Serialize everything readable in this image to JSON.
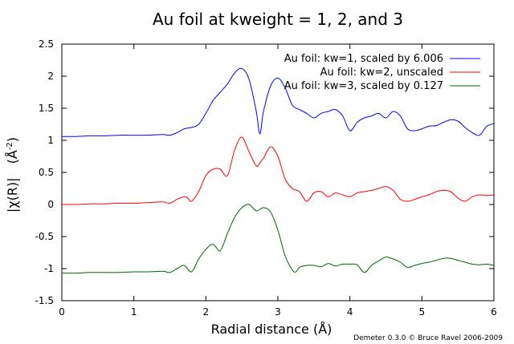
{
  "chart_data": {
    "type": "line",
    "title": "Au foil at kweight = 1, 2, and 3",
    "xlabel": "Radial distance    (Å)",
    "ylabel": "|χ(R)|",
    "ylabel_unit": "(Å",
    "ylabel_unit_sup": "-2",
    "ylabel_unit_close": ")",
    "credit": "Demeter 0.3.0 © Bruce Ravel 2006-2009",
    "xlim": [
      0,
      6
    ],
    "ylim": [
      -1.5,
      2.5
    ],
    "xticks": [
      0,
      1,
      2,
      3,
      4,
      5,
      6
    ],
    "yticks": [
      2.5,
      2,
      1.5,
      1,
      0.5,
      0,
      -0.5,
      -1,
      -1.5
    ],
    "ytick_labels": [
      "2.5",
      "2",
      "1.5",
      "1",
      "0.5",
      "0",
      "-0.5",
      "-1",
      "-1.5"
    ],
    "xtick_labels": [
      "0",
      "1",
      "2",
      "3",
      "4",
      "5",
      "6"
    ],
    "legend_position": "top-right",
    "grid": false,
    "series": [
      {
        "name": "Au foil: kw=1, scaled by 6.006",
        "color": "#0000ff",
        "x": [
          0,
          0.2,
          0.4,
          0.6,
          0.8,
          1.0,
          1.2,
          1.4,
          1.5,
          1.6,
          1.7,
          1.8,
          1.9,
          2.0,
          2.1,
          2.2,
          2.3,
          2.4,
          2.5,
          2.6,
          2.7,
          2.75,
          2.8,
          2.9,
          3.0,
          3.1,
          3.2,
          3.3,
          3.4,
          3.5,
          3.6,
          3.7,
          3.8,
          3.9,
          4.0,
          4.1,
          4.2,
          4.3,
          4.4,
          4.5,
          4.6,
          4.7,
          4.8,
          4.9,
          5.0,
          5.1,
          5.2,
          5.3,
          5.4,
          5.5,
          5.6,
          5.7,
          5.8,
          5.9,
          6.0
        ],
        "y": [
          1.06,
          1.06,
          1.07,
          1.07,
          1.08,
          1.08,
          1.08,
          1.09,
          1.08,
          1.12,
          1.18,
          1.2,
          1.25,
          1.42,
          1.62,
          1.75,
          1.88,
          2.05,
          2.12,
          1.95,
          1.45,
          1.1,
          1.45,
          1.85,
          1.97,
          1.82,
          1.55,
          1.48,
          1.42,
          1.35,
          1.42,
          1.45,
          1.48,
          1.38,
          1.15,
          1.28,
          1.35,
          1.38,
          1.42,
          1.35,
          1.45,
          1.38,
          1.18,
          1.15,
          1.18,
          1.22,
          1.23,
          1.28,
          1.32,
          1.3,
          1.2,
          1.12,
          1.08,
          1.22,
          1.26
        ]
      },
      {
        "name": "Au foil: kw=2, unscaled",
        "color": "#ff0000",
        "x": [
          0,
          0.2,
          0.4,
          0.6,
          0.8,
          1.0,
          1.2,
          1.4,
          1.5,
          1.6,
          1.7,
          1.75,
          1.8,
          1.9,
          2.0,
          2.1,
          2.2,
          2.3,
          2.4,
          2.5,
          2.6,
          2.7,
          2.75,
          2.8,
          2.9,
          3.0,
          3.1,
          3.2,
          3.3,
          3.4,
          3.5,
          3.6,
          3.7,
          3.8,
          3.9,
          4.0,
          4.1,
          4.2,
          4.3,
          4.4,
          4.5,
          4.6,
          4.7,
          4.8,
          4.9,
          5.0,
          5.1,
          5.2,
          5.3,
          5.4,
          5.5,
          5.6,
          5.7,
          5.8,
          5.9,
          6.0
        ],
        "y": [
          0.0,
          0.0,
          0.01,
          0.01,
          0.02,
          0.02,
          0.03,
          0.04,
          0.02,
          0.08,
          0.12,
          0.1,
          0.05,
          0.2,
          0.45,
          0.55,
          0.55,
          0.45,
          0.85,
          1.05,
          0.82,
          0.6,
          0.65,
          0.72,
          0.9,
          0.75,
          0.4,
          0.25,
          0.2,
          0.05,
          0.18,
          0.2,
          0.12,
          0.18,
          0.15,
          0.12,
          0.18,
          0.2,
          0.22,
          0.25,
          0.28,
          0.22,
          0.08,
          0.05,
          0.08,
          0.12,
          0.15,
          0.2,
          0.22,
          0.2,
          0.1,
          0.05,
          0.12,
          0.15,
          0.14,
          0.15
        ]
      },
      {
        "name": "Au foil: kw=3, scaled by 0.127",
        "color": "#006400",
        "x": [
          0,
          0.2,
          0.4,
          0.6,
          0.8,
          1.0,
          1.2,
          1.4,
          1.5,
          1.6,
          1.7,
          1.8,
          1.9,
          2.0,
          2.1,
          2.2,
          2.3,
          2.4,
          2.5,
          2.6,
          2.7,
          2.8,
          2.9,
          3.0,
          3.1,
          3.2,
          3.25,
          3.3,
          3.4,
          3.5,
          3.6,
          3.7,
          3.8,
          3.9,
          4.0,
          4.1,
          4.2,
          4.3,
          4.4,
          4.5,
          4.6,
          4.7,
          4.8,
          4.9,
          5.0,
          5.1,
          5.2,
          5.3,
          5.4,
          5.5,
          5.6,
          5.7,
          5.8,
          5.9,
          6.0
        ],
        "y": [
          -1.07,
          -1.07,
          -1.06,
          -1.06,
          -1.06,
          -1.05,
          -1.05,
          -1.04,
          -1.06,
          -1.0,
          -0.95,
          -1.05,
          -0.85,
          -0.7,
          -0.62,
          -0.72,
          -0.45,
          -0.2,
          -0.05,
          0.0,
          -0.1,
          -0.05,
          -0.12,
          -0.4,
          -0.8,
          -1.02,
          -1.05,
          -0.98,
          -0.95,
          -0.95,
          -0.97,
          -0.92,
          -0.96,
          -0.93,
          -0.93,
          -0.94,
          -1.06,
          -0.95,
          -0.88,
          -0.82,
          -0.85,
          -0.9,
          -0.98,
          -0.95,
          -0.92,
          -0.9,
          -0.87,
          -0.84,
          -0.84,
          -0.87,
          -0.9,
          -0.93,
          -0.94,
          -0.93,
          -0.95
        ]
      }
    ]
  }
}
